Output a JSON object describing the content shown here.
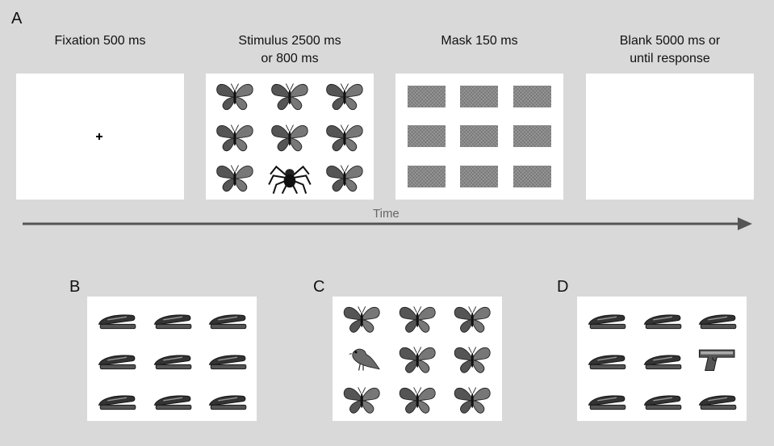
{
  "panel_letters": {
    "a": "A",
    "b": "B",
    "c": "C",
    "d": "D"
  },
  "captions": {
    "fixation": "Fixation 500 ms",
    "stimulus": "Stimulus 2500 ms\nor 800 ms",
    "mask": "Mask 150 ms",
    "blank": "Blank 5000 ms or\nuntil response"
  },
  "timeline": {
    "label": "Time",
    "color": "#555555"
  },
  "stimulus_grid": [
    "butterfly-icon",
    "butterfly-icon",
    "butterfly-icon",
    "butterfly-icon",
    "butterfly-icon",
    "butterfly-icon",
    "butterfly-icon",
    "spider-icon",
    "butterfly-icon"
  ],
  "grid_b": [
    "stapler-icon",
    "stapler-icon",
    "stapler-icon",
    "stapler-icon",
    "stapler-icon",
    "stapler-icon",
    "stapler-icon",
    "stapler-icon",
    "stapler-icon"
  ],
  "grid_c": [
    "butterfly-icon",
    "butterfly-icon",
    "butterfly-icon",
    "bird-icon",
    "butterfly-icon",
    "butterfly-icon",
    "butterfly-icon",
    "butterfly-icon",
    "butterfly-icon"
  ],
  "grid_d": [
    "stapler-icon",
    "stapler-icon",
    "stapler-icon",
    "stapler-icon",
    "stapler-icon",
    "gun-icon",
    "stapler-icon",
    "stapler-icon",
    "stapler-icon"
  ]
}
